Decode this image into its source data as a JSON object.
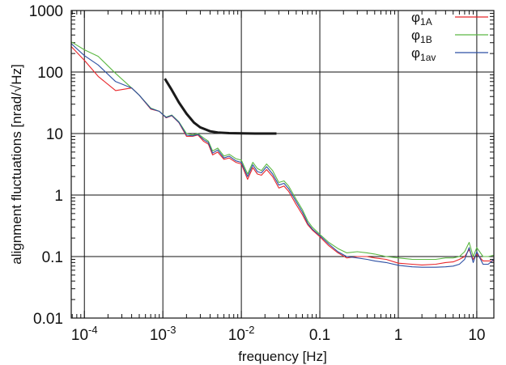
{
  "chart_data": {
    "type": "line",
    "title": "",
    "xlabel": "frequency [Hz]",
    "ylabel": "alignment fluctuations [nrad/√Hz]",
    "xscale": "log",
    "yscale": "log",
    "xlim": [
      6.8e-05,
      16.5
    ],
    "ylim": [
      0.01,
      1000
    ],
    "grid": true,
    "legend_position": "top-right",
    "x_tick_labels": [
      {
        "value": 0.0001,
        "base": "10",
        "exp": "-4"
      },
      {
        "value": 0.001,
        "base": "10",
        "exp": "-3"
      },
      {
        "value": 0.01,
        "base": "10",
        "exp": "-2"
      },
      {
        "value": 0.1,
        "base": "0.1",
        "exp": ""
      },
      {
        "value": 1,
        "base": "1",
        "exp": ""
      },
      {
        "value": 10,
        "base": "10",
        "exp": ""
      }
    ],
    "y_tick_labels": [
      {
        "value": 1000,
        "label": "1000"
      },
      {
        "value": 100,
        "label": "100"
      },
      {
        "value": 10,
        "label": "10"
      },
      {
        "value": 1,
        "label": "1"
      },
      {
        "value": 0.1,
        "label": "0.1"
      },
      {
        "value": 0.01,
        "label": "0.01"
      }
    ],
    "series": [
      {
        "name": "φ",
        "subscript": "1A",
        "color": "#e8262b",
        "x": [
          6.8e-05,
          0.0001,
          0.00015,
          0.00025,
          0.0004,
          0.0005,
          0.0007,
          0.0009,
          0.0011,
          0.0013,
          0.0016,
          0.002,
          0.0024,
          0.0028,
          0.0033,
          0.0038,
          0.0043,
          0.005,
          0.006,
          0.007,
          0.0085,
          0.01,
          0.012,
          0.014,
          0.016,
          0.018,
          0.021,
          0.025,
          0.03,
          0.035,
          0.04,
          0.05,
          0.06,
          0.07,
          0.08,
          0.1,
          0.13,
          0.17,
          0.22,
          0.3,
          0.4,
          0.5,
          0.7,
          1,
          1.5,
          2,
          3,
          4,
          5,
          6,
          7,
          8,
          9,
          10,
          12,
          14,
          16.5
        ],
        "values": [
          260,
          155,
          85,
          50,
          55,
          42,
          25,
          23,
          18,
          19.5,
          15,
          9,
          9,
          9.5,
          7.5,
          6.7,
          4.5,
          5,
          3.8,
          4,
          3.4,
          3.2,
          1.8,
          2.8,
          2.2,
          2.1,
          2.6,
          2,
          1.3,
          1.4,
          1.15,
          0.7,
          0.48,
          0.33,
          0.27,
          0.21,
          0.15,
          0.115,
          0.095,
          0.1,
          0.1,
          0.095,
          0.09,
          0.078,
          0.075,
          0.073,
          0.075,
          0.08,
          0.082,
          0.09,
          0.1,
          0.13,
          0.09,
          0.11,
          0.085,
          0.085,
          0.085
        ]
      },
      {
        "name": "φ",
        "subscript": "1B",
        "color": "#5cb843",
        "x": [
          6.8e-05,
          0.0001,
          0.00015,
          0.00025,
          0.0004,
          0.0005,
          0.0007,
          0.0009,
          0.0011,
          0.0013,
          0.0016,
          0.002,
          0.0024,
          0.0028,
          0.0033,
          0.0038,
          0.0043,
          0.005,
          0.006,
          0.007,
          0.0085,
          0.01,
          0.012,
          0.014,
          0.016,
          0.018,
          0.021,
          0.025,
          0.03,
          0.035,
          0.04,
          0.05,
          0.06,
          0.07,
          0.08,
          0.1,
          0.13,
          0.17,
          0.22,
          0.3,
          0.4,
          0.5,
          0.7,
          1,
          1.5,
          2,
          3,
          4,
          5,
          6,
          7,
          8,
          9,
          10,
          12,
          14,
          16.5
        ],
        "values": [
          310,
          230,
          180,
          95,
          55,
          42,
          26,
          23,
          18.5,
          20,
          15.5,
          10,
          9.5,
          10,
          8.5,
          7.5,
          5.2,
          5.8,
          4.3,
          4.6,
          3.9,
          3.7,
          2.2,
          3.4,
          2.7,
          2.5,
          3.2,
          2.5,
          1.6,
          1.7,
          1.4,
          0.85,
          0.58,
          0.38,
          0.3,
          0.23,
          0.17,
          0.135,
          0.115,
          0.12,
          0.115,
          0.11,
          0.1,
          0.095,
          0.09,
          0.09,
          0.09,
          0.095,
          0.095,
          0.1,
          0.12,
          0.17,
          0.1,
          0.14,
          0.1,
          0.1,
          0.105
        ]
      },
      {
        "name": "φ",
        "subscript": "1av",
        "color": "#2c4fa3",
        "x": [
          6.8e-05,
          0.0001,
          0.00015,
          0.00025,
          0.0004,
          0.0005,
          0.0007,
          0.0009,
          0.0011,
          0.0013,
          0.0016,
          0.002,
          0.0024,
          0.0028,
          0.0033,
          0.0038,
          0.0043,
          0.005,
          0.006,
          0.007,
          0.0085,
          0.01,
          0.012,
          0.014,
          0.016,
          0.018,
          0.021,
          0.025,
          0.03,
          0.035,
          0.04,
          0.05,
          0.06,
          0.07,
          0.08,
          0.1,
          0.13,
          0.17,
          0.22,
          0.3,
          0.4,
          0.5,
          0.7,
          1,
          1.5,
          2,
          3,
          4,
          5,
          6,
          7,
          8,
          9,
          10,
          12,
          14,
          16.5
        ],
        "values": [
          290,
          185,
          130,
          70,
          55,
          42,
          25.5,
          23,
          18.2,
          19.7,
          15.2,
          9.4,
          9.2,
          9.7,
          8,
          7.1,
          4.8,
          5.4,
          4,
          4.3,
          3.6,
          3.4,
          2,
          3.1,
          2.4,
          2.3,
          2.9,
          2.2,
          1.45,
          1.55,
          1.27,
          0.78,
          0.53,
          0.35,
          0.28,
          0.22,
          0.16,
          0.12,
          0.1,
          0.095,
          0.09,
          0.085,
          0.08,
          0.072,
          0.068,
          0.067,
          0.067,
          0.068,
          0.07,
          0.075,
          0.09,
          0.14,
          0.08,
          0.12,
          0.075,
          0.075,
          0.09
        ]
      },
      {
        "name": "",
        "color": "#1a1a1a",
        "width": 3,
        "legend": false,
        "x": [
          0.00106,
          0.0013,
          0.0016,
          0.002,
          0.0025,
          0.003,
          0.004,
          0.005,
          0.007,
          0.01,
          0.015,
          0.02,
          0.028
        ],
        "values": [
          78,
          51,
          32,
          21,
          15,
          12.6,
          10.9,
          10.4,
          10.15,
          10.05,
          10,
          10,
          10
        ]
      }
    ]
  }
}
